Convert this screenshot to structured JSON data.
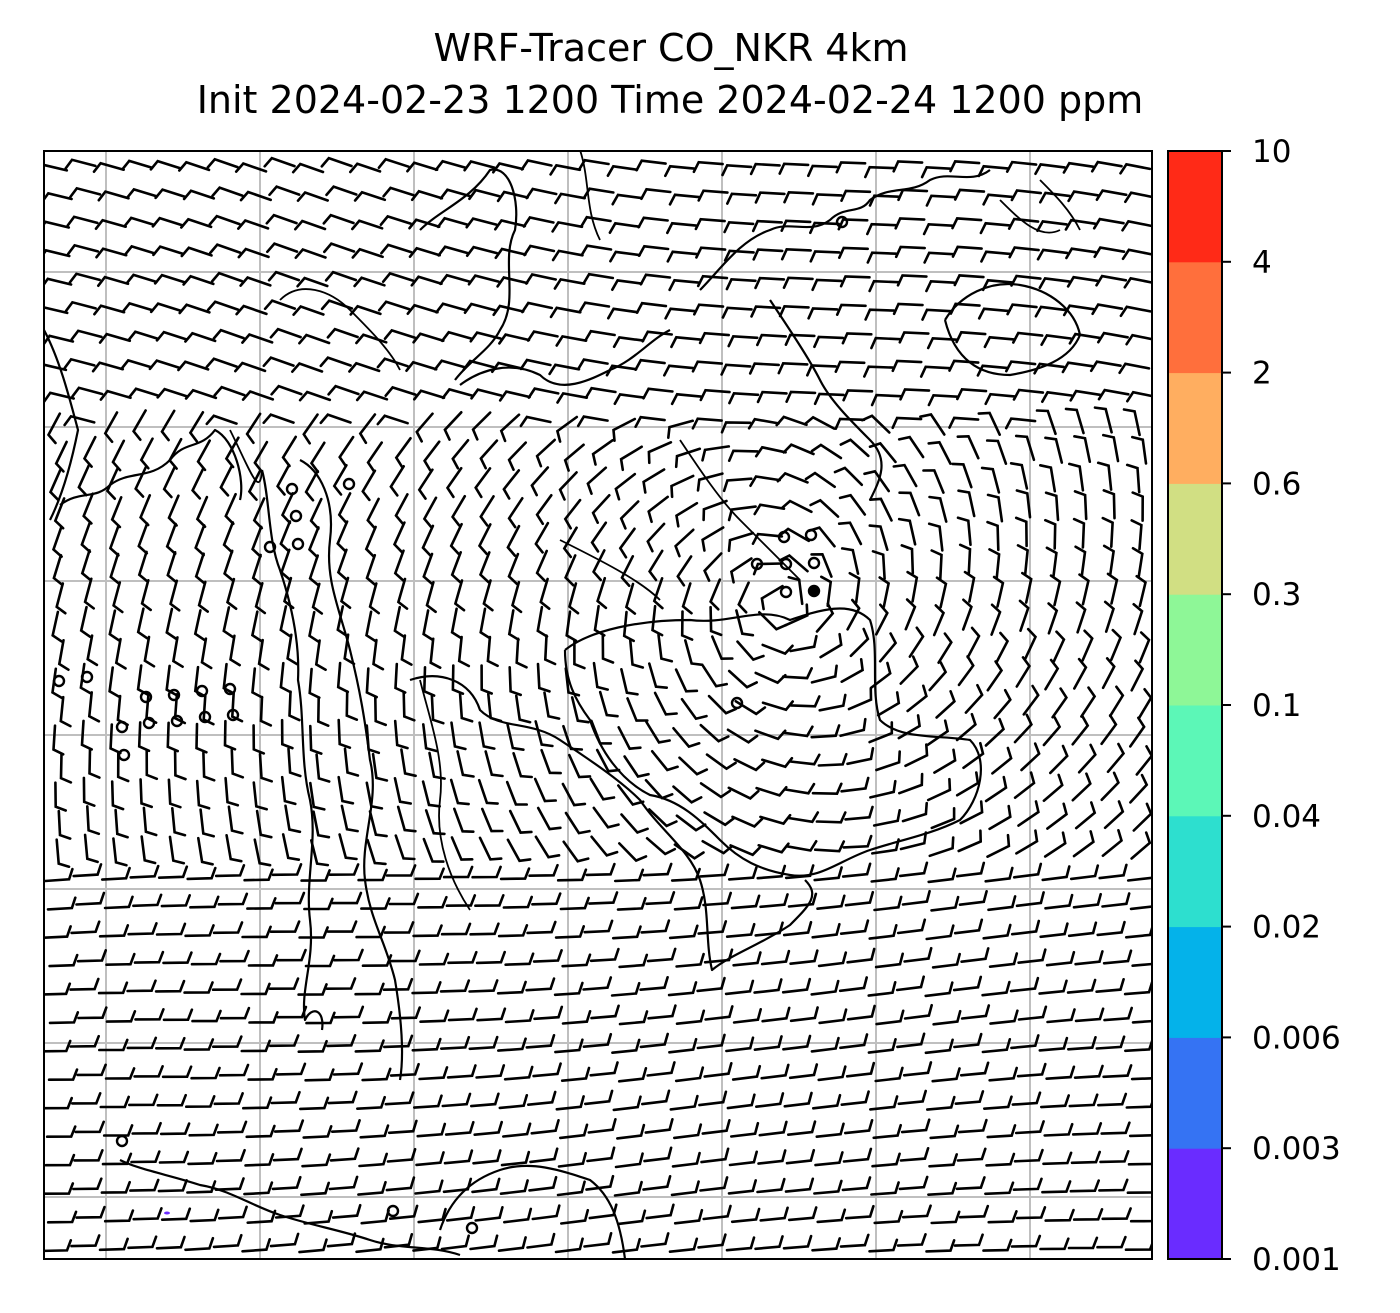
{
  "title": {
    "line1": "WRF-Tracer CO_NKR 4km",
    "line2": "Init 2024-02-23 1200 Time 2024-02-24 1200 ppm"
  },
  "colorbar": {
    "levels": [
      "0.001",
      "0.003",
      "0.006",
      "0.02",
      "0.04",
      "0.1",
      "0.3",
      "0.6",
      "2",
      "4",
      "10"
    ],
    "colors": [
      "#6a2cff",
      "#3573f3",
      "#04b2ea",
      "#2ddfcf",
      "#5cf7b7",
      "#8ef797",
      "#d1df83",
      "#ffae60",
      "#ff6f3c",
      "#ff2a17"
    ]
  },
  "map": {
    "gridlines": true,
    "features": [
      "coastline",
      "borders",
      "wind-barbs",
      "calm-circles"
    ],
    "barb_color": "#000000",
    "grid_color": "#bfbfbf"
  }
}
